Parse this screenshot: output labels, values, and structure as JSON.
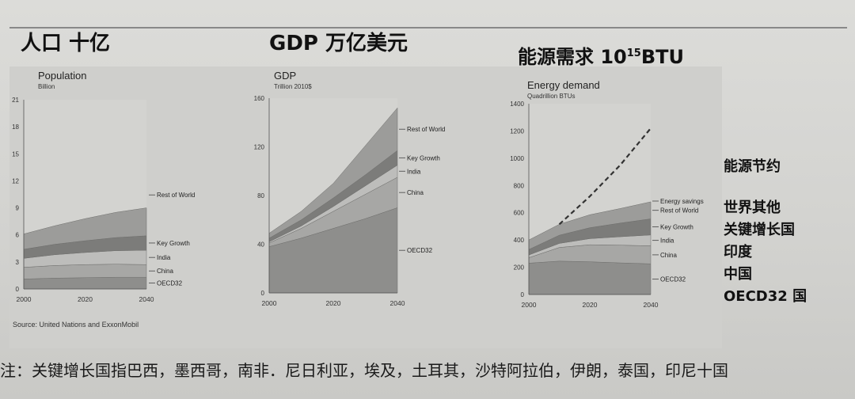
{
  "headings": {
    "population": "人口 十亿",
    "gdp": "GDP 万亿美元",
    "energy_main": "能源需求 10",
    "energy_sup": "15",
    "energy_unit": "BTU"
  },
  "legend_cn": [
    "能源节约",
    "世界其他",
    "关键增长国",
    "印度",
    "中国",
    "OECD32 国"
  ],
  "footnote": "注：关键增长国指巴西，墨西哥，南非．尼日利亚，埃及，土耳其，沙特阿拉伯，伊朗，泰国，印尼十国",
  "source": "Source: United Nations and ExxonMobil",
  "colors": {
    "OECD32": "#8e8e8c",
    "China": "#a7a7a5",
    "India": "#bdbdbb",
    "Key Growth": "#7c7c7a",
    "Rest of World": "#9c9c9a",
    "plot_bg": "#d3d3d0",
    "dash": "#333333"
  },
  "chart_data": [
    {
      "type": "area",
      "title": "Population",
      "ylabel": "Billion",
      "x": [
        2000,
        2010,
        2020,
        2030,
        2040
      ],
      "xticks": [
        2000,
        2020,
        2040
      ],
      "ylim": [
        0,
        21
      ],
      "yticks": [
        0,
        3,
        6,
        9,
        12,
        15,
        18,
        21
      ],
      "series": [
        {
          "name": "OECD32",
          "values": [
            1.1,
            1.2,
            1.25,
            1.3,
            1.3
          ]
        },
        {
          "name": "China",
          "values": [
            1.3,
            1.4,
            1.45,
            1.45,
            1.4
          ]
        },
        {
          "name": "India",
          "values": [
            1.0,
            1.2,
            1.35,
            1.5,
            1.6
          ]
        },
        {
          "name": "Key Growth",
          "values": [
            1.0,
            1.15,
            1.3,
            1.45,
            1.6
          ]
        },
        {
          "name": "Rest of World",
          "values": [
            1.7,
            2.05,
            2.45,
            2.8,
            3.1
          ]
        }
      ],
      "legend": [
        "Rest of World",
        "Key Growth",
        "India",
        "China",
        "OECD32"
      ],
      "source": "Source: United Nations and ExxonMobil"
    },
    {
      "type": "area",
      "title": "GDP",
      "ylabel": "Trillion 2010$",
      "x": [
        2000,
        2010,
        2020,
        2030,
        2040
      ],
      "xticks": [
        2000,
        2020,
        2040
      ],
      "ylim": [
        0,
        160
      ],
      "yticks": [
        0,
        40,
        80,
        120,
        160
      ],
      "series": [
        {
          "name": "OECD32",
          "values": [
            38,
            45,
            53,
            61,
            70
          ]
        },
        {
          "name": "China",
          "values": [
            3,
            8,
            14,
            20,
            25
          ]
        },
        {
          "name": "India",
          "values": [
            1,
            2,
            4,
            7,
            10
          ]
        },
        {
          "name": "Key Growth",
          "values": [
            3,
            5,
            7,
            9,
            12
          ]
        },
        {
          "name": "Rest of World",
          "values": [
            4,
            7,
            12,
            24,
            35
          ]
        }
      ],
      "legend": [
        "Rest of World",
        "Key Growth",
        "India",
        "China",
        "OECD32"
      ]
    },
    {
      "type": "area",
      "title": "Energy demand",
      "ylabel": "Quadrillion BTUs",
      "x": [
        2000,
        2010,
        2020,
        2030,
        2040
      ],
      "xticks": [
        2000,
        2020,
        2040
      ],
      "ylim": [
        0,
        1400
      ],
      "yticks": [
        0,
        200,
        400,
        600,
        800,
        1000,
        1200,
        1400
      ],
      "series": [
        {
          "name": "OECD32",
          "values": [
            230,
            245,
            240,
            232,
            225
          ]
        },
        {
          "name": "China",
          "values": [
            40,
            100,
            125,
            130,
            132
          ]
        },
        {
          "name": "India",
          "values": [
            20,
            30,
            45,
            62,
            80
          ]
        },
        {
          "name": "Key Growth",
          "values": [
            40,
            60,
            80,
            100,
            118
          ]
        },
        {
          "name": "Rest of World",
          "values": [
            70,
            80,
            95,
            107,
            125
          ]
        }
      ],
      "energy_savings": {
        "name": "Energy savings",
        "x": [
          2010,
          2020,
          2030,
          2040
        ],
        "values": [
          515,
          720,
          950,
          1220
        ]
      },
      "legend": [
        "Energy savings",
        "Rest of World",
        "Key Growth",
        "India",
        "China",
        "OECD32"
      ]
    }
  ]
}
